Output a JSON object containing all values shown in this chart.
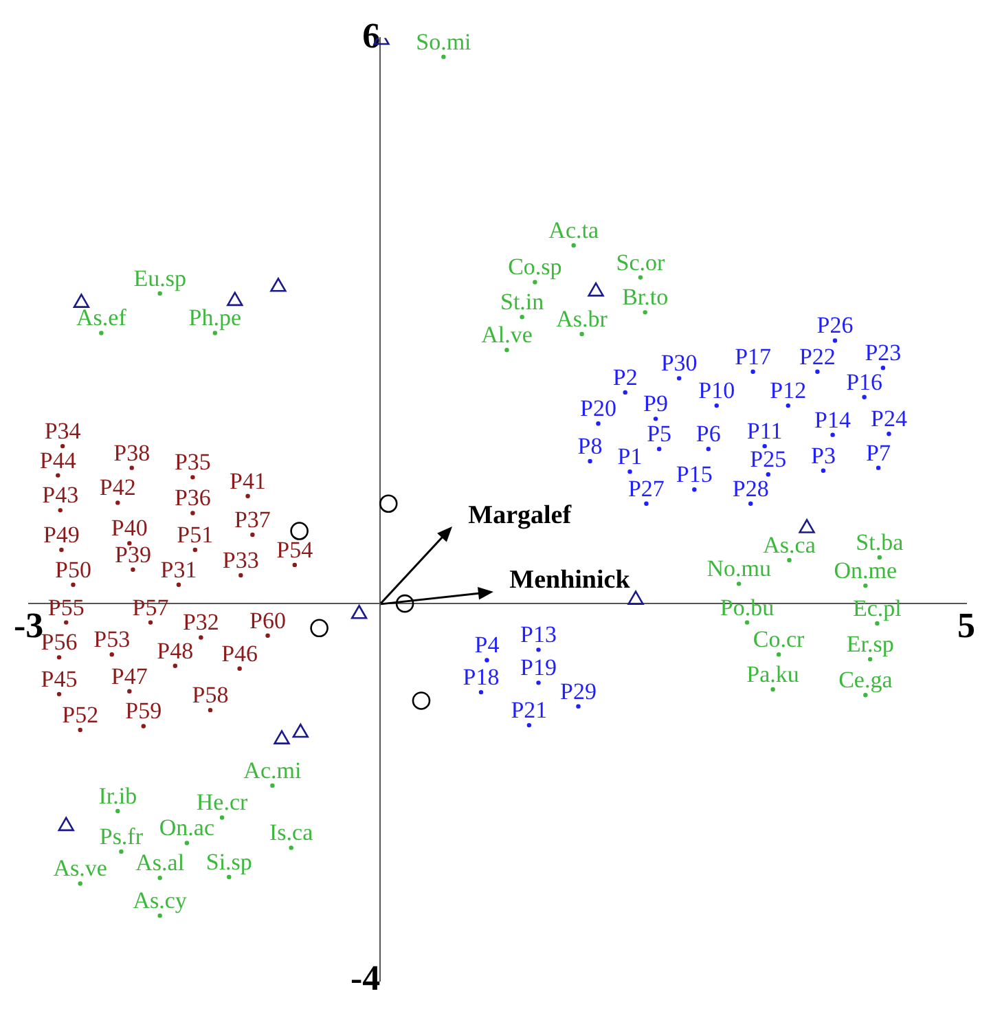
{
  "chart_data": {
    "type": "scatter",
    "xlim": [
      -3,
      5
    ],
    "ylim": [
      -4,
      6
    ],
    "xticks": [
      -3,
      5
    ],
    "yticks": [
      -4,
      6
    ],
    "grid": false,
    "legend": false,
    "series": [
      {
        "type": "scatter",
        "marker": "circle",
        "color": "#1f1fff",
        "x": [
          3.88,
          3.73,
          4.29,
          3.18,
          2.55,
          2.09,
          2.87,
          3.48,
          4.13,
          2.35,
          1.86,
          3.86,
          4.34,
          2.38,
          2.8,
          3.28,
          1.79,
          2.13,
          3.78,
          4.25,
          3.31,
          2.68,
          2.27,
          3.16,
          1.35,
          0.91,
          1.35,
          0.86,
          1.69,
          1.27
        ],
        "values": [
          2.79,
          2.46,
          2.5,
          2.46,
          2.39,
          2.24,
          2.1,
          2.1,
          2.19,
          1.96,
          1.91,
          1.79,
          1.8,
          1.64,
          1.64,
          1.67,
          1.51,
          1.4,
          1.41,
          1.44,
          1.37,
          1.21,
          1.06,
          1.06,
          -0.49,
          -0.6,
          -0.84,
          -0.94,
          -1.09,
          -1.29
        ],
        "value_labels": [
          "P26",
          "P22",
          "P23",
          "P17",
          "P30",
          "P2",
          "P10",
          "P12",
          "P16",
          "P9",
          "P20",
          "P14",
          "P24",
          "P5",
          "P6",
          "P11",
          "P8",
          "P1",
          "P3",
          "P7",
          "P25",
          "P15",
          "P27",
          "P28",
          "P13",
          "P4",
          "P19",
          "P18",
          "P29",
          "P21"
        ]
      },
      {
        "type": "scatter",
        "marker": "circle",
        "color": "#8b1a1a",
        "x": [
          -2.71,
          -2.75,
          -2.12,
          -1.6,
          -1.13,
          -2.73,
          -2.24,
          -1.6,
          -1.09,
          -2.72,
          -2.14,
          -1.58,
          -2.11,
          -1.19,
          -0.73,
          -2.62,
          -1.72,
          -2.68,
          -1.96,
          -1.53,
          -0.96,
          -2.74,
          -2.29,
          -1.75,
          -1.2,
          -2.74,
          -2.14,
          -1.45,
          -2.56,
          -2.02
        ],
        "values": [
          1.67,
          1.36,
          1.44,
          1.34,
          1.14,
          0.99,
          1.07,
          0.96,
          0.73,
          0.57,
          0.64,
          0.57,
          0.36,
          0.3,
          0.41,
          0.2,
          0.2,
          -0.2,
          -0.2,
          -0.36,
          -0.34,
          -0.57,
          -0.54,
          -0.66,
          -0.69,
          -0.96,
          -0.93,
          -1.13,
          -1.34,
          -1.3
        ],
        "value_labels": [
          "P34",
          "P44",
          "P38",
          "P35",
          "P41",
          "P43",
          "P42",
          "P36",
          "P37",
          "P49",
          "P40",
          "P51",
          "P39",
          "P33",
          "P54",
          "P50",
          "P31",
          "P55",
          "P57",
          "P32",
          "P60",
          "P56",
          "P53",
          "P48",
          "P46",
          "P45",
          "P47",
          "P58",
          "P52",
          "P59"
        ]
      },
      {
        "type": "scatter",
        "marker": "circle",
        "color": "#3cb83c",
        "x": [
          0.54,
          -1.88,
          -2.38,
          -1.41,
          1.65,
          1.32,
          2.22,
          1.21,
          2.26,
          1.72,
          1.08,
          3.49,
          4.26,
          3.06,
          4.14,
          3.13,
          4.24,
          3.4,
          4.18,
          3.35,
          4.14,
          -0.92,
          -2.24,
          -1.35,
          -1.65,
          -0.76,
          -2.21,
          -1.88,
          -1.29,
          -2.56,
          -1.88
        ],
        "values": [
          5.8,
          3.29,
          2.87,
          2.87,
          3.8,
          3.41,
          3.46,
          3.04,
          3.09,
          2.86,
          2.69,
          0.46,
          0.49,
          0.21,
          0.19,
          -0.2,
          -0.21,
          -0.54,
          -0.59,
          -0.91,
          -0.97,
          -1.93,
          -2.2,
          -2.27,
          -2.54,
          -2.59,
          -2.63,
          -2.91,
          -2.9,
          -2.97,
          -3.31
        ],
        "value_labels": [
          "So.mi",
          "Eu.sp",
          "As.ef",
          "Ph.pe",
          "Ac.ta",
          "Co.sp",
          "Sc.or",
          "St.in",
          "Br.to",
          "As.br",
          "Al.ve",
          "As.ca",
          "St.ba",
          "No.mu",
          "On.me",
          "Po.bu",
          "Ec.pl",
          "Co.cr",
          "Er.sp",
          "Pa.ku",
          "Ce.ga",
          "Ac.mi",
          "Ir.ib",
          "He.cr",
          "On.ac",
          "Is.ca",
          "Ps.fr",
          "As.al",
          "Si.sp",
          "As.ve",
          "As.cy"
        ]
      },
      {
        "type": "scatter",
        "marker": "triangle",
        "color": "#1a1a8c",
        "x": [
          0.01,
          -2.55,
          -1.24,
          -0.87,
          1.84,
          3.64,
          2.18,
          -0.18,
          -0.84,
          -0.68,
          -2.68
        ],
        "values": [
          5.98,
          3.19,
          3.21,
          3.36,
          3.31,
          0.8,
          0.04,
          -0.11,
          -1.44,
          -1.37,
          -2.36
        ]
      },
      {
        "type": "scatter",
        "marker": "circle",
        "color": "#000000",
        "x": [
          -0.69,
          0.21,
          -0.52,
          0.35
        ],
        "values": [
          0.77,
          0,
          -0.26,
          -1.03
        ]
      },
      {
        "type": "scatter",
        "marker": "circle",
        "color": "#000000",
        "x": [
          0.07
        ],
        "values": [
          1.06
        ]
      }
    ],
    "annotations": [
      "Margalef",
      "Menhinick"
    ]
  }
}
